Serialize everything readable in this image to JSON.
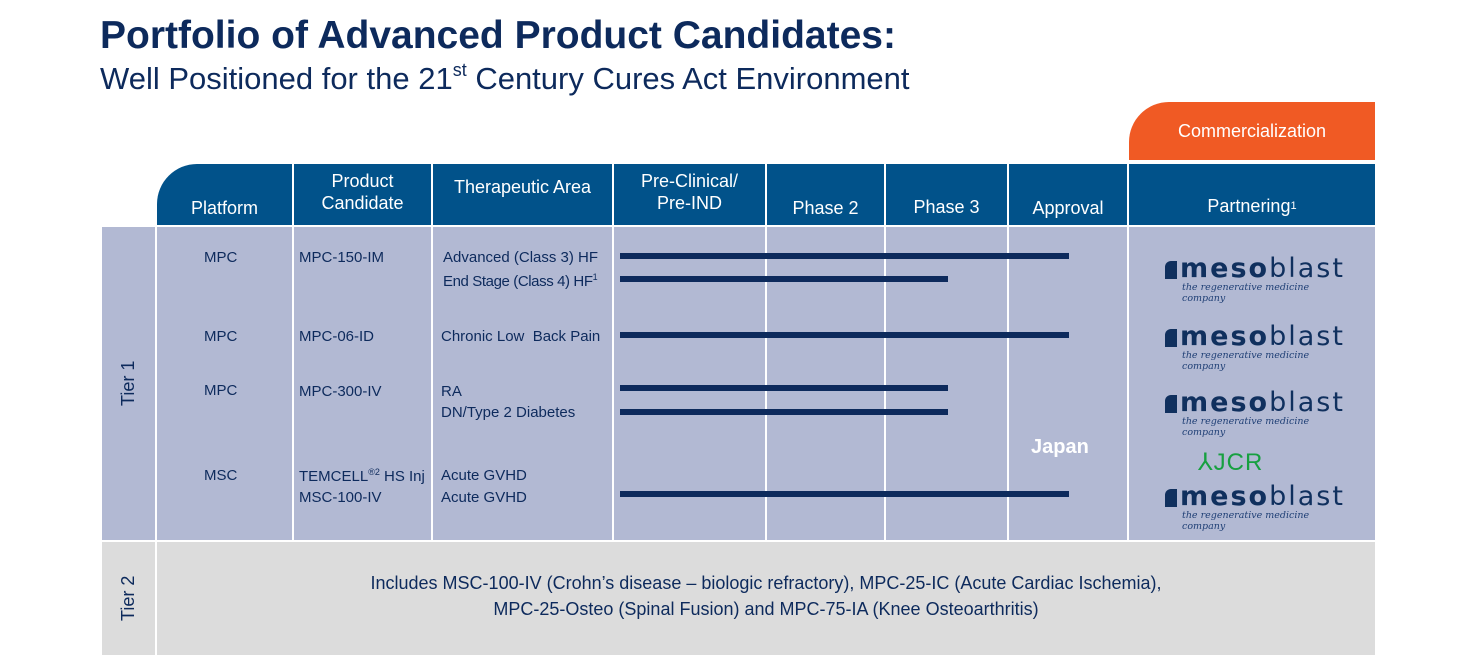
{
  "title": "Portfolio of Advanced Product Candidates:",
  "subtitle": {
    "before": "Well Positioned for the 21",
    "sup": "st",
    "after": " Century Cures Act Environment"
  },
  "commercialization": "Commercialization",
  "headers": {
    "platform": "Platform",
    "product": [
      "Product",
      "Candidate"
    ],
    "therapeutic": "Therapeutic Area",
    "preclinical": [
      "Pre-Clinical/",
      "Pre-IND"
    ],
    "phase2": "Phase 2",
    "phase3": "Phase 3",
    "approval": "Approval",
    "partnering": "Partnering",
    "partnering_sup": "1"
  },
  "tiers": {
    "tier1": "Tier 1",
    "tier2": "Tier 2"
  },
  "rows": [
    {
      "platform": "MPC",
      "product": "MPC-150-IM",
      "area": "Advanced (Class 3) HF",
      "stage": "Phase 3",
      "progress": 3.5
    },
    {
      "platform": "",
      "product": "",
      "area": "End Stage (Class 4) HF",
      "area_sup": "1",
      "stage": "Phase 2",
      "progress": 2.5
    },
    {
      "platform": "MPC",
      "product": "MPC-06-ID",
      "area": "Chronic Low  Back Pain",
      "stage": "Phase 3",
      "progress": 3.5
    },
    {
      "platform": "MPC",
      "product": "MPC-300-IV",
      "area": "RA",
      "stage": "Phase 2",
      "progress": 2.5
    },
    {
      "platform": "",
      "product": "",
      "area": "DN/Type 2 Diabetes",
      "stage": "Phase 2",
      "progress": 2.5
    },
    {
      "platform": "MSC",
      "product": "TEMCELL",
      "product_sup": "®2",
      "product_suffix": " HS Inj",
      "area": "Acute GVHD",
      "stage": "Approval",
      "progress": 4.5
    },
    {
      "platform": "",
      "product": "MSC-100-IV",
      "area": "Acute GVHD",
      "stage": "Phase 3",
      "progress": 3.5
    }
  ],
  "japan": "Japan",
  "partners": {
    "mesoblast": "mesoblast",
    "mesoblast_bold": "meso",
    "mesoblast_light": "blast",
    "tagline": "the regenerative medicine company",
    "jcr": "JCR"
  },
  "tier2_text": [
    "Includes MSC-100-IV (Crohn’s disease – biologic refractory), MPC-25-IC (Acute Cardiac Ischemia),",
    "MPC-25-Osteo (Spinal Fusion) and MPC-75-IA (Knee Osteoarthritis)"
  ],
  "colors": {
    "header": "#01528a",
    "body": "#b2b9d3",
    "bar": "#0d2a5c",
    "commercial": "#f05a24",
    "tier2": "#dcdcdc",
    "jcr": "#17a040"
  }
}
